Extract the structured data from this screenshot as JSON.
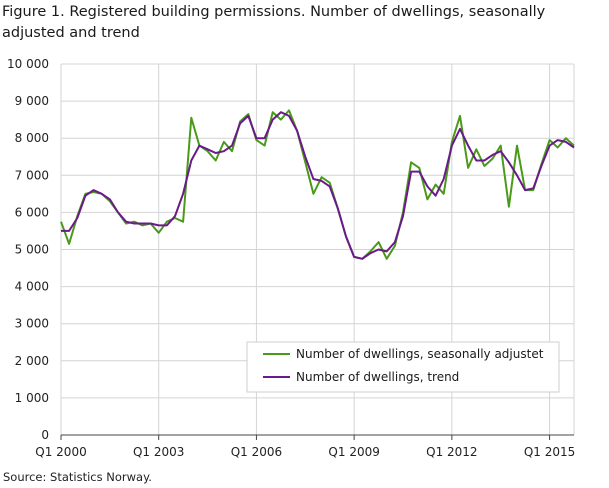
{
  "title": "Figure 1. Registered building permissions. Number of dwellings, seasonally adjusted and trend",
  "source": "Source: Statistics Norway.",
  "colors": {
    "seasonally_adjusted": "#4a9a1a",
    "trend": "#6a1a8a",
    "grid": "#d4d4d4"
  },
  "chart_data": {
    "type": "line",
    "title": "Figure 1. Registered building permissions. Number of dwellings, seasonally adjusted and trend",
    "xlabel": "",
    "ylabel": "",
    "ylim": [
      0,
      10000
    ],
    "y_ticks": [
      0,
      1000,
      2000,
      3000,
      4000,
      5000,
      6000,
      7000,
      8000,
      9000,
      10000
    ],
    "y_tick_labels": [
      "0",
      "1 000",
      "2 000",
      "3 000",
      "4 000",
      "5 000",
      "6 000",
      "7 000",
      "8 000",
      "9 000",
      "10 000"
    ],
    "x_tick_labels": [
      "Q1 2000",
      "Q1 2003",
      "Q1 2006",
      "Q1 2009",
      "Q1 2012",
      "Q1 2015"
    ],
    "x_tick_positions": [
      "2000Q1",
      "2003Q1",
      "2006Q1",
      "2009Q1",
      "2012Q1",
      "2015Q1"
    ],
    "grid": true,
    "legend_position": "bottom-right",
    "x": [
      "2000Q1",
      "2000Q2",
      "2000Q3",
      "2000Q4",
      "2001Q1",
      "2001Q2",
      "2001Q3",
      "2001Q4",
      "2002Q1",
      "2002Q2",
      "2002Q3",
      "2002Q4",
      "2003Q1",
      "2003Q2",
      "2003Q3",
      "2003Q4",
      "2004Q1",
      "2004Q2",
      "2004Q3",
      "2004Q4",
      "2005Q1",
      "2005Q2",
      "2005Q3",
      "2005Q4",
      "2006Q1",
      "2006Q2",
      "2006Q3",
      "2006Q4",
      "2007Q1",
      "2007Q2",
      "2007Q3",
      "2007Q4",
      "2008Q1",
      "2008Q2",
      "2008Q3",
      "2008Q4",
      "2009Q1",
      "2009Q2",
      "2009Q3",
      "2009Q4",
      "2010Q1",
      "2010Q2",
      "2010Q3",
      "2010Q4",
      "2011Q1",
      "2011Q2",
      "2011Q3",
      "2011Q4",
      "2012Q1",
      "2012Q2",
      "2012Q3",
      "2012Q4",
      "2013Q1",
      "2013Q2",
      "2013Q3",
      "2013Q4",
      "2014Q1",
      "2014Q2",
      "2014Q3",
      "2014Q4",
      "2015Q1",
      "2015Q2",
      "2015Q3",
      "2015Q4"
    ],
    "series": [
      {
        "name": "Number of dwellings, seasonally adjustet",
        "values": [
          5750,
          5150,
          5900,
          6500,
          6550,
          6500,
          6300,
          6000,
          5700,
          5750,
          5650,
          5700,
          5450,
          5750,
          5850,
          5750,
          8550,
          7800,
          7650,
          7400,
          7900,
          7650,
          8450,
          8650,
          7950,
          7800,
          8700,
          8500,
          8750,
          8200,
          7350,
          6500,
          6950,
          6800,
          6100,
          5350,
          4800,
          4750,
          4950,
          5200,
          4750,
          5100,
          6000,
          7350,
          7200,
          6350,
          6750,
          6500,
          7900,
          8600,
          7200,
          7700,
          7250,
          7450,
          7800,
          6150,
          7800,
          6600,
          6600,
          7300,
          7950,
          7750,
          8000,
          7800
        ]
      },
      {
        "name": "Number of dwellings, trend",
        "values": [
          5500,
          5500,
          5850,
          6450,
          6600,
          6500,
          6350,
          6000,
          5750,
          5700,
          5700,
          5700,
          5650,
          5650,
          5900,
          6500,
          7400,
          7800,
          7700,
          7600,
          7650,
          7800,
          8400,
          8600,
          8000,
          8000,
          8500,
          8700,
          8600,
          8200,
          7500,
          6900,
          6850,
          6700,
          6100,
          5350,
          4800,
          4750,
          4900,
          5000,
          4950,
          5200,
          5900,
          7100,
          7100,
          6700,
          6450,
          6900,
          7800,
          8250,
          7800,
          7400,
          7400,
          7550,
          7650,
          7350,
          7000,
          6600,
          6650,
          7250,
          7800,
          7950,
          7900,
          7750
        ]
      }
    ]
  }
}
